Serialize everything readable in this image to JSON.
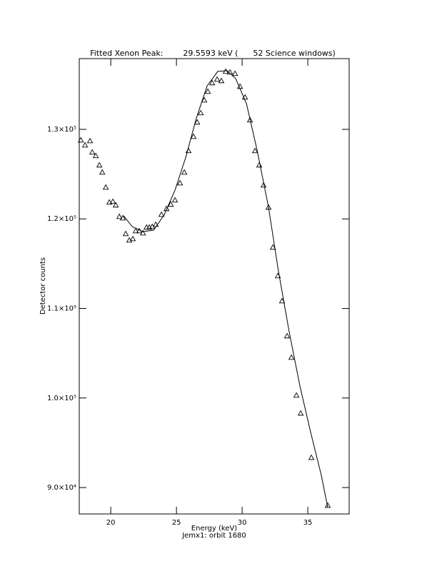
{
  "chart_data": {
    "type": "scatter",
    "title": "Fitted Xenon Peak:        29.5593 keV (      52 Science windows)",
    "x_label": "Energy (keV)",
    "subtitle": "Jemx1: orbit 1680",
    "y_label": "Detector counts",
    "xlim": [
      17.6,
      38.15
    ],
    "ylim": [
      87050,
      137900
    ],
    "xticks": [
      20,
      25,
      30,
      35
    ],
    "yticks": [
      {
        "value": 90000,
        "label": "9.0×10⁴"
      },
      {
        "value": 100000,
        "label": "1.0×10⁵"
      },
      {
        "value": 110000,
        "label": "1.1×10⁵"
      },
      {
        "value": 120000,
        "label": "1.2×10⁵"
      },
      {
        "value": 130000,
        "label": "1.3×10⁵"
      }
    ],
    "series": [
      {
        "mode": "markers",
        "color": "#000000",
        "x": [
          17.72,
          18.04,
          18.42,
          18.59,
          18.86,
          19.13,
          19.35,
          19.62,
          19.89,
          20.16,
          20.38,
          20.65,
          20.92,
          21.14,
          21.41,
          21.68,
          21.9,
          22.17,
          22.45,
          22.72,
          22.93,
          23.15,
          23.42,
          23.86,
          24.24,
          24.57,
          24.89,
          25.27,
          25.6,
          25.92,
          26.3,
          26.58,
          26.85,
          27.12,
          27.39,
          27.72,
          28.1,
          28.42,
          28.75,
          29.08,
          29.46,
          29.84,
          30.22,
          30.6,
          30.98,
          31.3,
          31.63,
          32.01,
          32.34,
          32.72,
          33.04,
          33.42,
          33.75,
          34.13,
          34.46,
          35.27,
          36.52
        ],
        "values": [
          128800,
          128240,
          128720,
          127450,
          127050,
          126010,
          125210,
          123530,
          121860,
          121940,
          121540,
          120260,
          120100,
          118340,
          117620,
          117780,
          118660,
          118660,
          118420,
          119060,
          119060,
          119140,
          119380,
          120500,
          121140,
          121620,
          122100,
          124010,
          125210,
          127610,
          129200,
          130800,
          131840,
          133270,
          134230,
          135190,
          135590,
          135430,
          136470,
          136390,
          136230,
          134790,
          133590,
          131040,
          127610,
          126010,
          123770,
          121300,
          116830,
          113640,
          110840,
          106930,
          104530,
          100300,
          98300,
          93350,
          88000
        ]
      },
      {
        "mode": "lines",
        "color": "#000000",
        "x": [
          20.98,
          21.63,
          22.45,
          23.26,
          24.08,
          24.89,
          25.71,
          26.52,
          27.34,
          28.15,
          28.86,
          29.51,
          30.33,
          31.14,
          32.01,
          32.77,
          33.59,
          34.4,
          35.22,
          36.03,
          36.52
        ],
        "values": [
          120340,
          119140,
          118580,
          118740,
          120500,
          123210,
          126890,
          131280,
          134870,
          136470,
          136550,
          135670,
          132870,
          127680,
          121300,
          114110,
          107330,
          101340,
          96150,
          91360,
          87770
        ]
      }
    ]
  }
}
